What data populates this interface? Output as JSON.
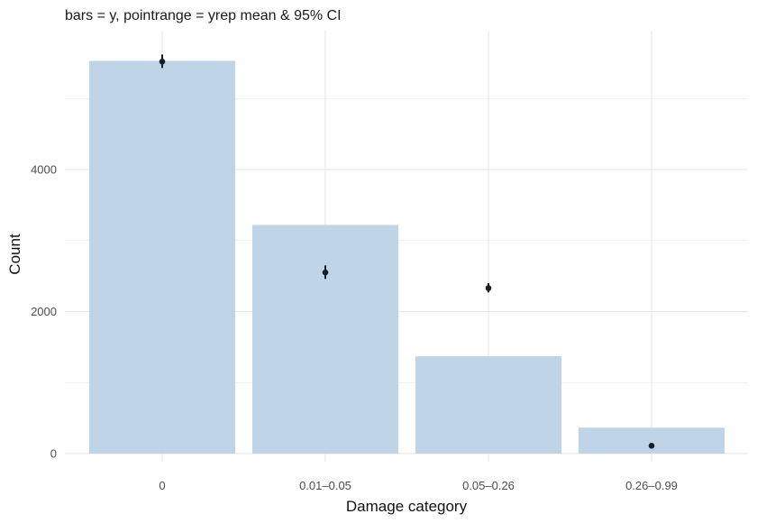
{
  "chart_data": {
    "type": "bar",
    "title": "bars = y, pointrange = yrep mean & 95% CI",
    "xlabel": "Damage category",
    "ylabel": "Count",
    "categories": [
      "0",
      "0.01–0.05",
      "0.05–0.26",
      "0.26–0.99"
    ],
    "series": [
      {
        "values": [
          5530,
          3220,
          1370,
          365
        ]
      },
      {
        "values": [
          5520,
          2550,
          2330,
          110
        ],
        "ci_low": [
          5430,
          2460,
          2270,
          95
        ],
        "ci_high": [
          5620,
          2650,
          2400,
          125
        ]
      }
    ],
    "yticks": [
      0,
      2000,
      4000
    ],
    "ylim": [
      -120,
      5870
    ],
    "grid": true,
    "colors": {
      "bar": "#bfd4e7",
      "point": "#15202b",
      "grid": "#e6e6e6"
    }
  }
}
